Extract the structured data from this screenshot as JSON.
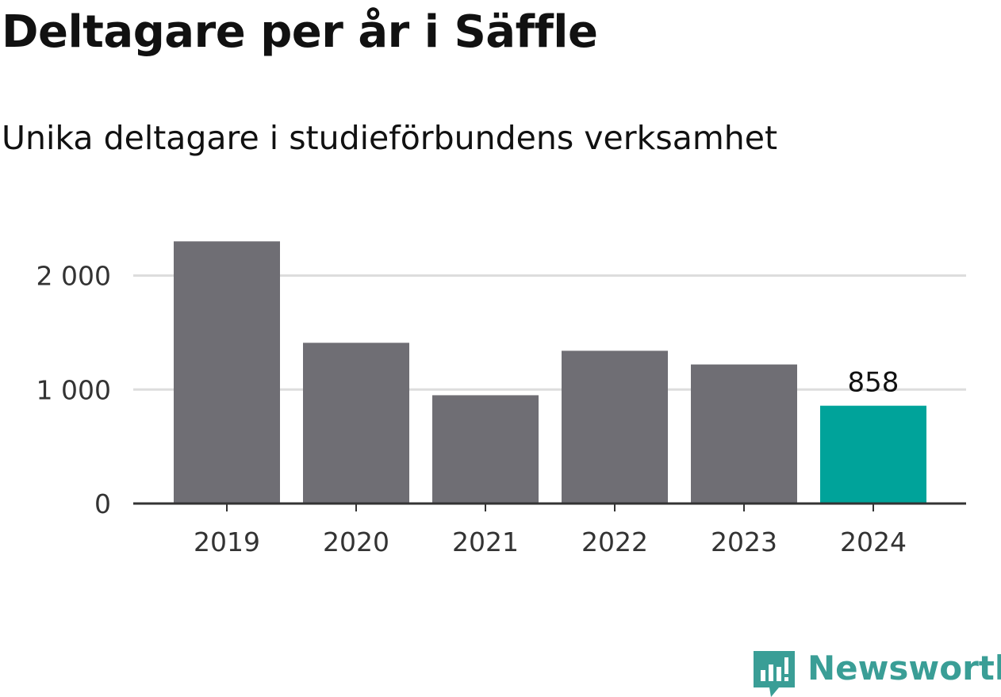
{
  "header": {
    "title": "Deltagare per år i Säffle",
    "subtitle": "Unika deltagare i studieförbundens verksamhet"
  },
  "chart_data": {
    "type": "bar",
    "title": "Deltagare per år i Säffle",
    "subtitle": "Unika deltagare i studieförbundens verksamhet",
    "xlabel": "",
    "ylabel": "",
    "categories": [
      "2019",
      "2020",
      "2021",
      "2022",
      "2023",
      "2024"
    ],
    "values": [
      2300,
      1410,
      950,
      1340,
      1220,
      858
    ],
    "highlight_index": 5,
    "highlight_label": "858",
    "yticks": [
      0,
      1000,
      2000
    ],
    "ytick_labels": [
      "0",
      "1 000",
      "2 000"
    ],
    "ylim": [
      0,
      2400
    ],
    "grid": true,
    "legend": "none",
    "colors": {
      "bar": "#6f6e74",
      "highlight": "#00a39a",
      "grid": "#dddddd",
      "axis": "#333333",
      "tick_text": "#333333"
    }
  },
  "brand": {
    "name": "Newsworthy",
    "icon": "newsworthy-logo-icon",
    "color": "#3a9e96"
  }
}
